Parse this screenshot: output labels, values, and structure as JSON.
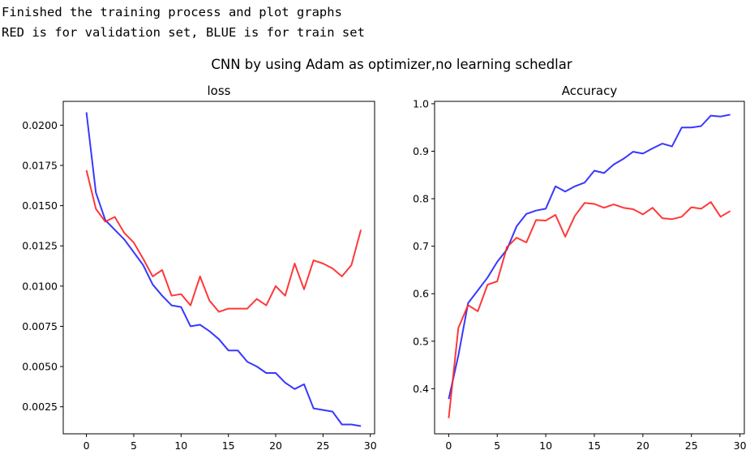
{
  "console": {
    "line1": "Finished the training process and plot graphs",
    "line2": "RED is for validation set, BLUE is for train set"
  },
  "figure": {
    "suptitle": "CNN by using Adam as optimizer,no learning schedlar"
  },
  "colors": {
    "train": "#2222ff",
    "validation": "#ff2222"
  },
  "chart_data": [
    {
      "type": "line",
      "title": "loss",
      "xlabel": "",
      "ylabel": "",
      "x": [
        0,
        1,
        2,
        3,
        4,
        5,
        6,
        7,
        8,
        9,
        10,
        11,
        12,
        13,
        14,
        15,
        16,
        17,
        18,
        19,
        20,
        21,
        22,
        23,
        24,
        25,
        26,
        27,
        28,
        29
      ],
      "xlim": [
        -2.45,
        30.45
      ],
      "ylim": [
        0.00082,
        0.02148
      ],
      "xticks": [
        0,
        5,
        10,
        15,
        20,
        25,
        30
      ],
      "xtick_labels": [
        "0",
        "5",
        "10",
        "15",
        "20",
        "25",
        "30"
      ],
      "yticks": [
        0.0025,
        0.005,
        0.0075,
        0.01,
        0.0125,
        0.015,
        0.0175,
        0.02
      ],
      "ytick_labels": [
        "0.0025",
        "0.0050",
        "0.0075",
        "0.0100",
        "0.0125",
        "0.0150",
        "0.0175",
        "0.0200"
      ],
      "grid": false,
      "series": [
        {
          "color_key": "train",
          "values": [
            0.0208,
            0.0158,
            0.0141,
            0.0135,
            0.0129,
            0.0121,
            0.0113,
            0.0101,
            0.0094,
            0.0088,
            0.0087,
            0.0075,
            0.0076,
            0.0072,
            0.0067,
            0.006,
            0.006,
            0.0053,
            0.005,
            0.0046,
            0.0046,
            0.004,
            0.0036,
            0.0039,
            0.0024,
            0.0023,
            0.0022,
            0.0014,
            0.0014,
            0.0013
          ]
        },
        {
          "color_key": "validation",
          "values": [
            0.0172,
            0.0148,
            0.014,
            0.0143,
            0.0133,
            0.0127,
            0.0117,
            0.0106,
            0.011,
            0.0094,
            0.0095,
            0.0088,
            0.0106,
            0.0091,
            0.0084,
            0.0086,
            0.0086,
            0.0086,
            0.0092,
            0.0088,
            0.01,
            0.0094,
            0.0114,
            0.0098,
            0.0116,
            0.0114,
            0.0111,
            0.0106,
            0.0113,
            0.0135
          ]
        }
      ]
    },
    {
      "type": "line",
      "title": "Accuracy",
      "xlabel": "",
      "ylabel": "",
      "x": [
        0,
        1,
        2,
        3,
        4,
        5,
        6,
        7,
        8,
        9,
        10,
        11,
        12,
        13,
        14,
        15,
        16,
        17,
        18,
        19,
        20,
        21,
        22,
        23,
        24,
        25,
        26,
        27,
        28,
        29
      ],
      "xlim": [
        -1.45,
        30.45
      ],
      "ylim": [
        0.305,
        1.005
      ],
      "xticks": [
        0,
        5,
        10,
        15,
        20,
        25,
        30
      ],
      "xtick_labels": [
        "0",
        "5",
        "10",
        "15",
        "20",
        "25",
        "30"
      ],
      "yticks": [
        0.4,
        0.5,
        0.6,
        0.7,
        0.8,
        0.9,
        1.0
      ],
      "ytick_labels": [
        "0.4",
        "0.5",
        "0.6",
        "0.7",
        "0.8",
        "0.9",
        "1.0"
      ],
      "grid": false,
      "series": [
        {
          "color_key": "train",
          "values": [
            0.378,
            0.47,
            0.58,
            0.607,
            0.634,
            0.667,
            0.693,
            0.742,
            0.768,
            0.775,
            0.779,
            0.826,
            0.815,
            0.826,
            0.834,
            0.859,
            0.854,
            0.872,
            0.884,
            0.899,
            0.895,
            0.906,
            0.916,
            0.91,
            0.95,
            0.95,
            0.953,
            0.975,
            0.973,
            0.977
          ]
        },
        {
          "color_key": "validation",
          "values": [
            0.338,
            0.528,
            0.576,
            0.563,
            0.619,
            0.626,
            0.698,
            0.718,
            0.708,
            0.755,
            0.754,
            0.766,
            0.72,
            0.764,
            0.791,
            0.789,
            0.781,
            0.788,
            0.781,
            0.778,
            0.767,
            0.781,
            0.759,
            0.757,
            0.762,
            0.782,
            0.779,
            0.793,
            0.762,
            0.774
          ]
        }
      ]
    }
  ]
}
